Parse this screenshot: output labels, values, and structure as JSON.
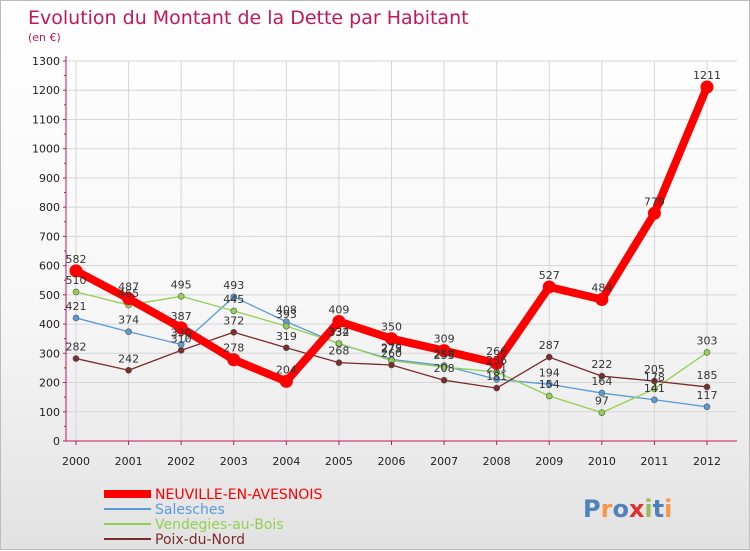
{
  "chart_data": {
    "type": "line",
    "title": "Evolution du Montant de la Dette par Habitant",
    "subtitle": "(en €)",
    "xlabel": "",
    "ylabel": "",
    "ylim": [
      0,
      1300
    ],
    "ytick_step": 100,
    "grid": true,
    "legend_position": "bottom-left",
    "x": [
      "2000",
      "2001",
      "2002",
      "2003",
      "2004",
      "2005",
      "2006",
      "2007",
      "2008",
      "2009",
      "2010",
      "2011",
      "2012"
    ],
    "series": [
      {
        "name": "NEUVILLE-EN-AVESNOIS",
        "color": "#ff0000",
        "emphasis": true,
        "values": [
          582,
          487,
          387,
          278,
          204,
          409,
          350,
          309,
          266,
          527,
          484,
          779,
          1211
        ]
      },
      {
        "name": "Salesches",
        "color": "#5b9bd5",
        "emphasis": false,
        "values": [
          421,
          374,
          330,
          493,
          408,
          332,
          279,
          258,
          211,
          194,
          164,
          141,
          117
        ]
      },
      {
        "name": "Vendegies-au-Bois",
        "color": "#92d050",
        "emphasis": false,
        "values": [
          510,
          465,
          495,
          445,
          393,
          334,
          275,
          253,
          236,
          154,
          97,
          178,
          303
        ]
      },
      {
        "name": "Poix-du-Nord",
        "color": "#7b2c2c",
        "emphasis": false,
        "values": [
          282,
          242,
          310,
          372,
          319,
          268,
          260,
          208,
          181,
          287,
          222,
          205,
          185
        ]
      }
    ]
  },
  "brand": {
    "text": "Proxiti"
  }
}
